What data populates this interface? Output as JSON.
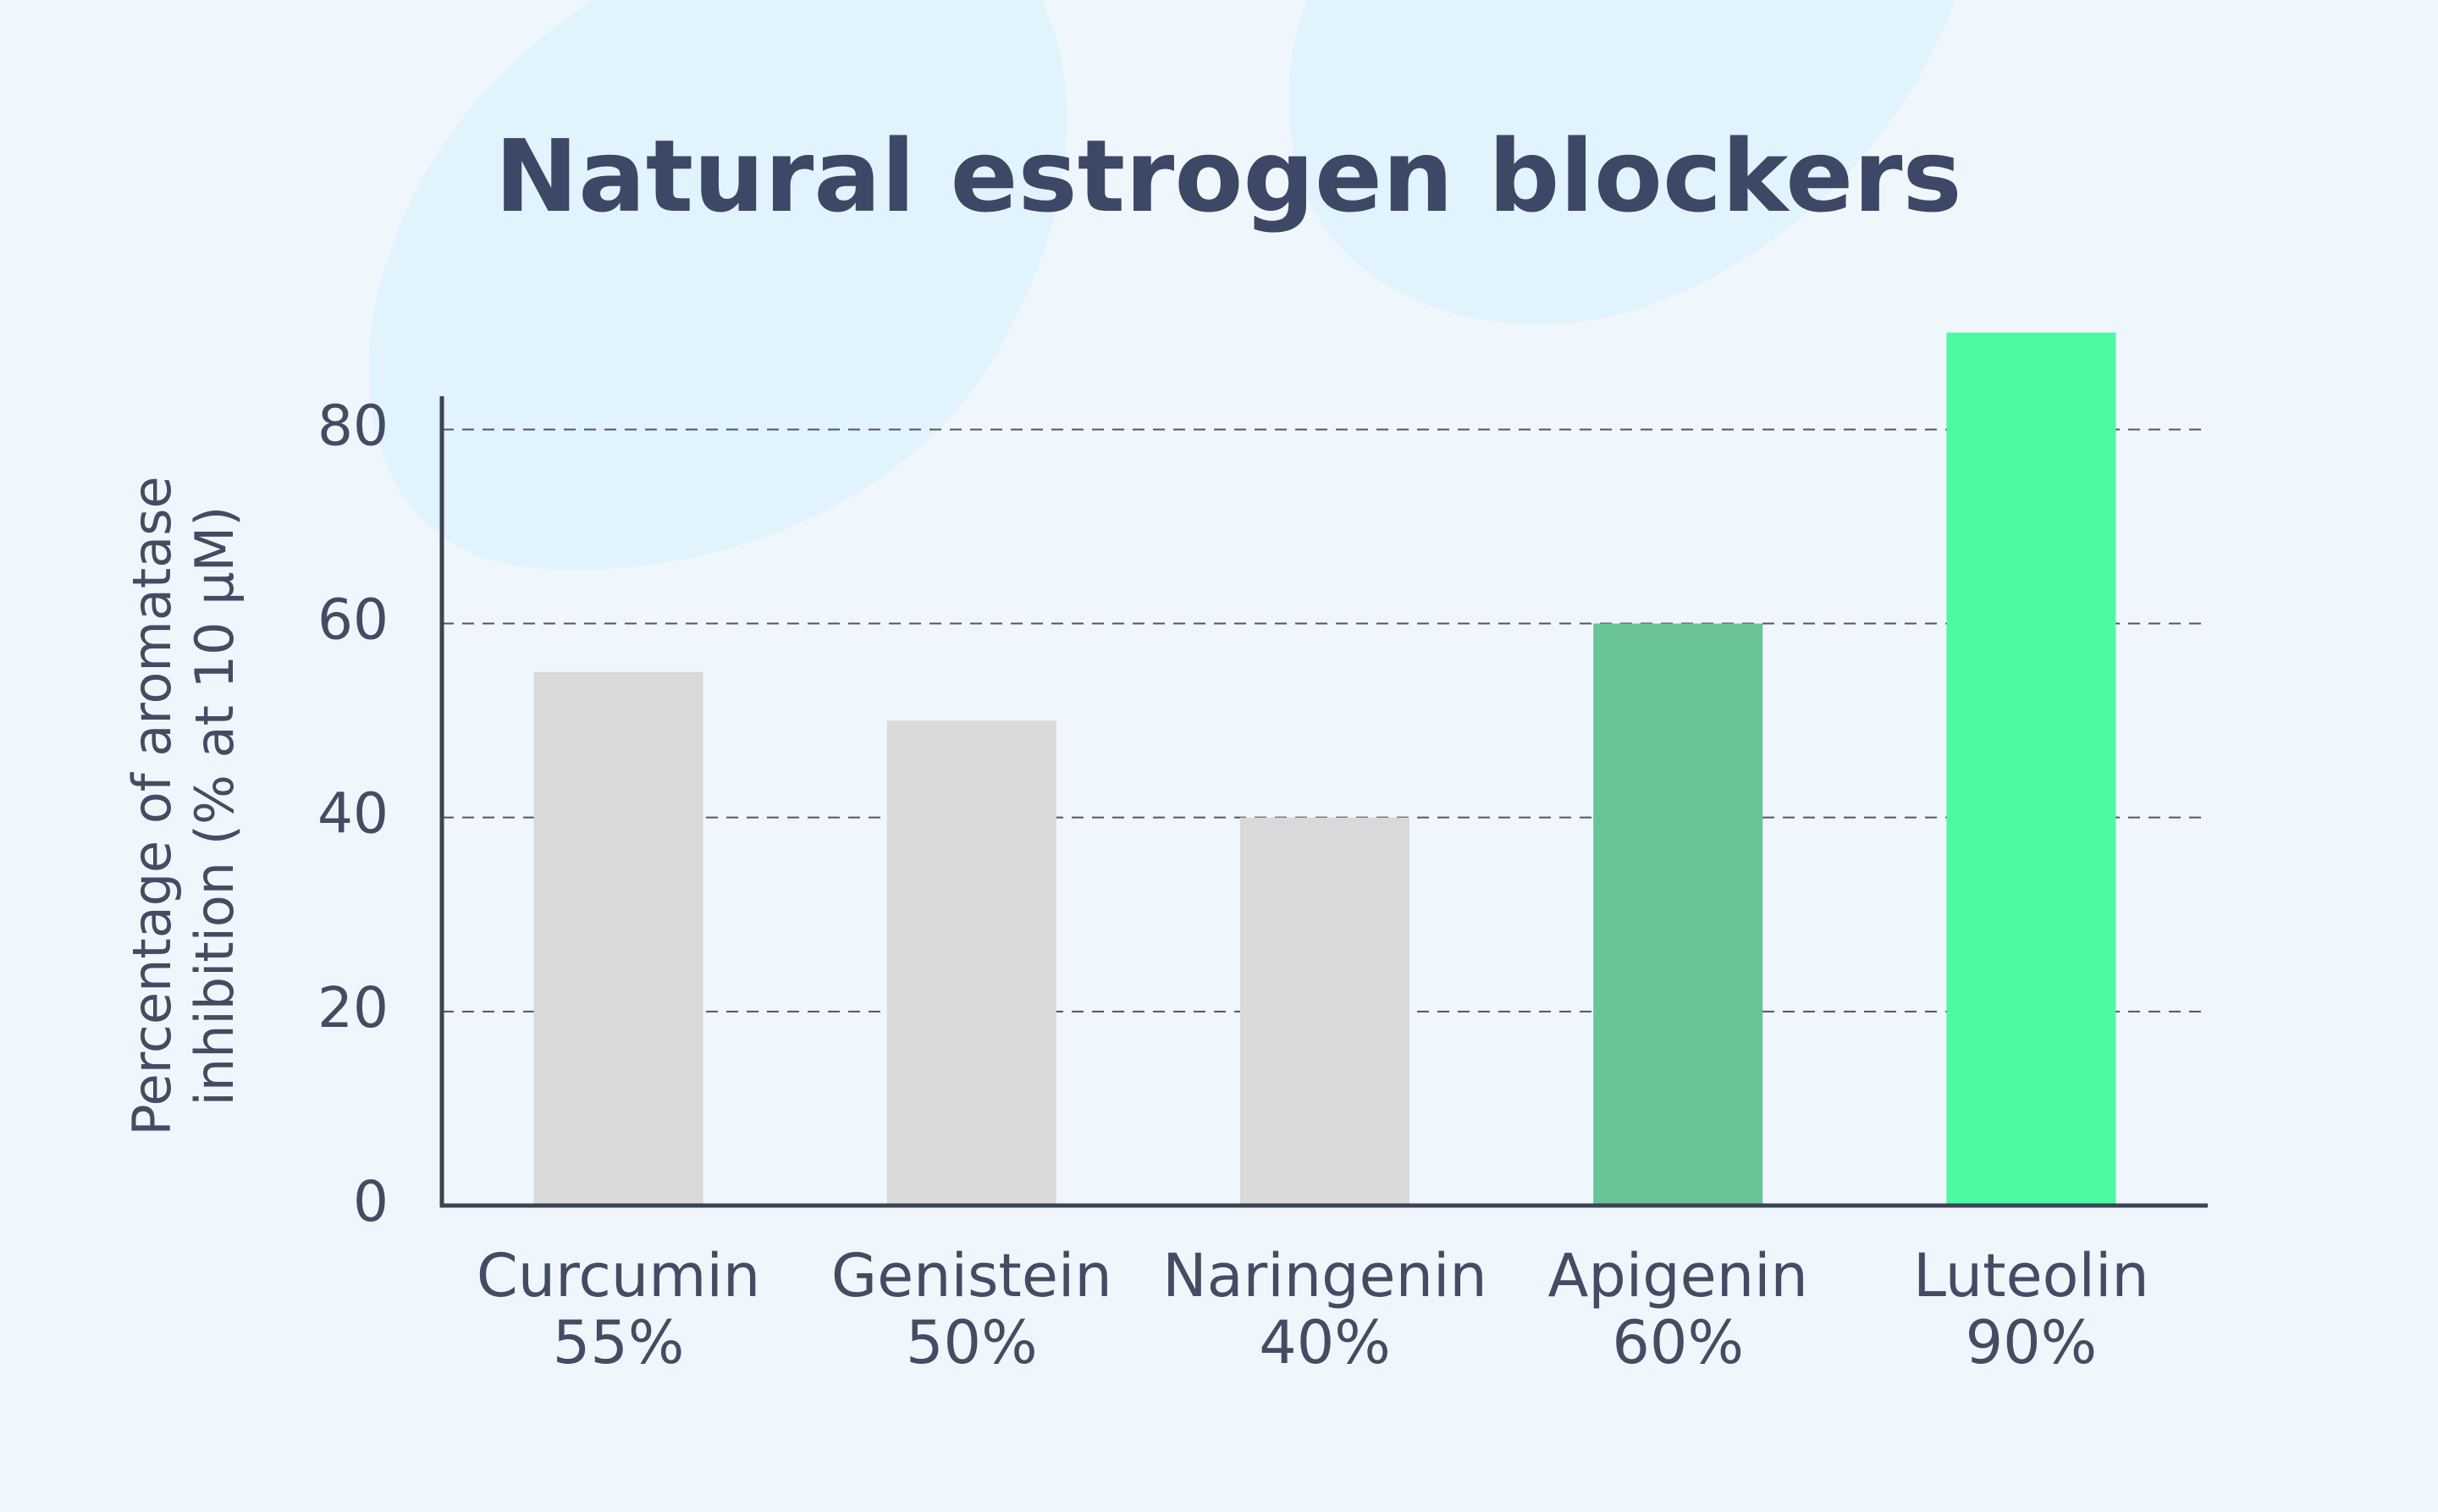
{
  "chart_data": {
    "type": "bar",
    "title": "Natural estrogen blockers",
    "ylabel": [
      "Percentage of aromatase",
      "inhibition (% at 10 μM)"
    ],
    "categories": [
      "Curcumin",
      "Genistein",
      "Naringenin",
      "Apigenin",
      "Luteolin"
    ],
    "values": [
      55,
      50,
      40,
      60,
      90
    ],
    "value_labels": [
      "55%",
      "50%",
      "40%",
      "60%",
      "90%"
    ],
    "colors": [
      "#d9d9d9",
      "#d9d9d9",
      "#d9d9d9",
      "#68c495",
      "#4dfaa1"
    ],
    "ylim": [
      0,
      83
    ],
    "yticks": [
      0,
      20,
      40,
      60,
      80
    ],
    "grid": true
  }
}
